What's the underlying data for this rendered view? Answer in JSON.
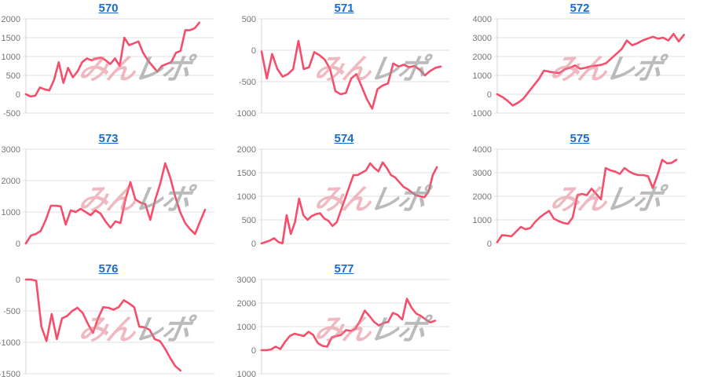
{
  "page": {
    "background": "#ffffff"
  },
  "watermark": {
    "pink_text": "みん",
    "gray_text": "レポ"
  },
  "colors": {
    "line": "#f54e6b",
    "grid_line": "#e2e2e2",
    "axis_line": "#d4d4d4",
    "tick_label": "#757575",
    "title_link": "#1a6bcc",
    "watermark_pink": "rgba(228,125,140,0.55)",
    "watermark_gray": "rgba(150,150,150,0.65)"
  },
  "chart_data": [
    {
      "type": "line",
      "title": "570",
      "legend": "none",
      "grid": true,
      "ylim": [
        -500,
        2000
      ],
      "ticks": [
        2000,
        1500,
        1000,
        500,
        0,
        -500
      ],
      "x_fraction": 0.92,
      "values": [
        0,
        -60,
        -40,
        180,
        130,
        100,
        380,
        850,
        300,
        700,
        450,
        600,
        850,
        950,
        900,
        950,
        970,
        900,
        800,
        950,
        750,
        1500,
        1300,
        1350,
        1400,
        1100,
        900,
        750,
        600,
        750,
        800,
        850,
        1100,
        1150,
        1700,
        1700,
        1750,
        1900
      ]
    },
    {
      "type": "line",
      "title": "571",
      "legend": "none",
      "grid": true,
      "ylim": [
        -1000,
        500
      ],
      "ticks": [
        500,
        0,
        -500,
        -1000
      ],
      "x_fraction": 0.95,
      "values": [
        -20,
        -450,
        -60,
        -300,
        -420,
        -380,
        -300,
        150,
        -300,
        -270,
        -30,
        -80,
        -150,
        -300,
        -650,
        -700,
        -680,
        -450,
        -380,
        -580,
        -780,
        -930,
        -620,
        -560,
        -530,
        -210,
        -260,
        -230,
        -270,
        -250,
        -310,
        -400,
        -330,
        -280,
        -260
      ]
    },
    {
      "type": "line",
      "title": "572",
      "legend": "none",
      "grid": true,
      "ylim": [
        -1000,
        4000
      ],
      "ticks": [
        4000,
        3000,
        2000,
        1000,
        0,
        -1000
      ],
      "x_fraction": 0.99,
      "values": [
        0,
        -150,
        -350,
        -600,
        -450,
        -250,
        100,
        450,
        800,
        1250,
        1200,
        1150,
        1130,
        1320,
        1400,
        1530,
        1350,
        1400,
        1480,
        1520,
        1550,
        1650,
        1900,
        2150,
        2400,
        2850,
        2600,
        2700,
        2850,
        2950,
        3050,
        2950,
        3000,
        2850,
        3200,
        2800,
        3150
      ]
    },
    {
      "type": "line",
      "title": "573",
      "legend": "none",
      "grid": true,
      "ylim": [
        0,
        3000
      ],
      "ticks": [
        3000,
        2000,
        1000,
        0
      ],
      "x_fraction": 0.95,
      "values": [
        0,
        250,
        300,
        400,
        750,
        1200,
        1200,
        1180,
        600,
        1050,
        1000,
        1100,
        1000,
        900,
        1050,
        950,
        700,
        500,
        700,
        650,
        1400,
        1950,
        1400,
        1300,
        1250,
        750,
        1400,
        1900,
        2550,
        2100,
        1500,
        1000,
        650,
        450,
        300,
        700,
        1070
      ]
    },
    {
      "type": "line",
      "title": "574",
      "legend": "none",
      "grid": true,
      "ylim": [
        0,
        2000
      ],
      "ticks": [
        2000,
        1500,
        1000,
        500,
        0
      ],
      "x_fraction": 0.93,
      "values": [
        0,
        30,
        60,
        110,
        30,
        0,
        600,
        200,
        450,
        950,
        600,
        500,
        580,
        620,
        640,
        530,
        480,
        370,
        450,
        700,
        950,
        1200,
        1450,
        1450,
        1500,
        1550,
        1700,
        1600,
        1530,
        1720,
        1600,
        1450,
        1400,
        1300,
        1200,
        1150,
        1080,
        1020,
        1000,
        980,
        1100,
        1450,
        1620
      ]
    },
    {
      "type": "line",
      "title": "575",
      "legend": "none",
      "grid": true,
      "ylim": [
        0,
        4000
      ],
      "ticks": [
        4000,
        3000,
        2000,
        1000,
        0
      ],
      "x_fraction": 0.95,
      "values": [
        50,
        350,
        330,
        300,
        500,
        700,
        600,
        650,
        900,
        1100,
        1250,
        1380,
        1050,
        950,
        870,
        830,
        1100,
        2050,
        2100,
        2050,
        2320,
        2100,
        1870,
        3200,
        3100,
        3050,
        2950,
        3200,
        3050,
        2950,
        2900,
        2900,
        2850,
        2350,
        2900,
        3550,
        3400,
        3420,
        3550
      ]
    },
    {
      "type": "line",
      "title": "576",
      "legend": "none",
      "grid": true,
      "ylim": [
        -1500,
        0
      ],
      "ticks": [
        0,
        -500,
        -1000,
        -1500
      ],
      "x_fraction": 0.82,
      "values": [
        0,
        0,
        -20,
        -750,
        -980,
        -550,
        -950,
        -620,
        -580,
        -500,
        -450,
        -530,
        -700,
        -850,
        -620,
        -440,
        -450,
        -480,
        -440,
        -330,
        -380,
        -440,
        -750,
        -760,
        -800,
        -950,
        -980,
        -1100,
        -1250,
        -1380,
        -1450
      ]
    },
    {
      "type": "line",
      "title": "577",
      "legend": "none",
      "grid": true,
      "ylim": [
        -1000,
        3000
      ],
      "ticks": [
        3000,
        2000,
        1000,
        0,
        -1000
      ],
      "x_fraction": 0.92,
      "values": [
        0,
        0,
        30,
        150,
        50,
        350,
        600,
        700,
        650,
        600,
        780,
        650,
        300,
        180,
        150,
        550,
        600,
        650,
        850,
        820,
        900,
        1250,
        1680,
        1450,
        1200,
        1050,
        1150,
        1200,
        1580,
        1500,
        1300,
        2180,
        1800,
        1550,
        1450,
        1300,
        1180,
        1250
      ]
    }
  ]
}
